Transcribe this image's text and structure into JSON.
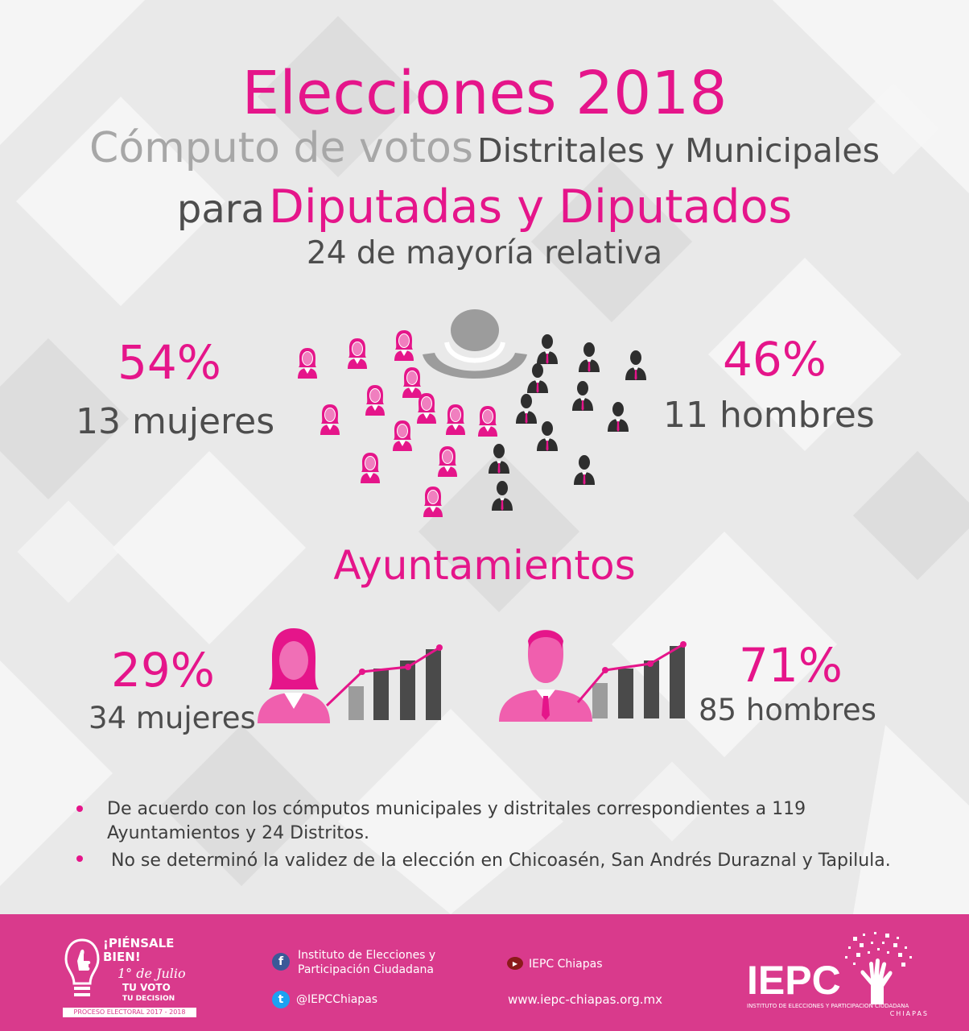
{
  "header": {
    "title": "Elecciones 2018",
    "subtitle_part1": "Cómputo de votos",
    "subtitle_part2": "Distritales y Municipales",
    "line3_part1": "para",
    "line3_part2": "Diputadas y Diputados",
    "line4": "24 de mayoría relativa"
  },
  "diputaciones": {
    "women_pct": "54%",
    "women_count": "13  mujeres",
    "men_pct": "46%",
    "men_count": "11 hombres",
    "women_seats": 13,
    "men_seats": 11
  },
  "ayuntamientos": {
    "heading": "Ayuntamientos",
    "women_pct": "29%",
    "women_count": "34 mujeres",
    "men_pct": "71%",
    "men_count": "85  hombres"
  },
  "notes": [
    {
      "text_line1": "De acuerdo con los cómputos municipales y distritales correspondientes a 119",
      "text_line2": "Ayuntamientos y 24 Distritos."
    },
    {
      "text_line1": "No se determinó la validez de la elección en Chicoasén, San Andrés Duraznal y Tapilula.",
      "text_line2": ""
    }
  ],
  "footer": {
    "campaign_line1": "¡PIÉNSALE",
    "campaign_line2": "BIEN!",
    "campaign_line3": "1° de Julio",
    "campaign_line4": "TU VOTO",
    "campaign_line5": "TU DECISION",
    "campaign_line6": "PROCESO ELECTORAL 2017 - 2018",
    "facebook_line1": "Instituto de Elecciones y",
    "facebook_line2": "Participación Ciudadana",
    "twitter": "@IEPCChiapas",
    "youtube": "IEPC Chiapas",
    "website": "www.iepc-chiapas.org.mx",
    "logo_text": "IEPC",
    "logo_subtitle": "INSTITUTO DE ELECCIONES Y PARTICIPACION CIUDADANA",
    "logo_state": "CHIAPAS"
  },
  "colors": {
    "accent": "#e5158a",
    "footer_bg": "#d93a8c",
    "dark_text": "#4d4d4d",
    "light_text": "#a7a7a7"
  },
  "icons": [
    "woman-icon",
    "man-icon",
    "speaker-icon",
    "bar-chart-icon",
    "facebook-icon",
    "twitter-icon",
    "youtube-icon",
    "lightbulb-icon",
    "tree-hand-icon"
  ]
}
